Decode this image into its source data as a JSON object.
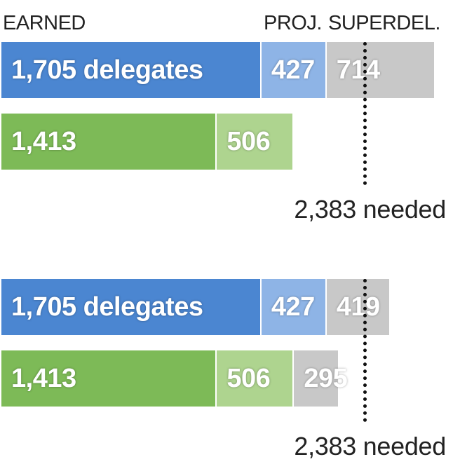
{
  "headers": {
    "earned": "EARNED",
    "projected": "PROJ.",
    "superdelegates": "SUPERDEL."
  },
  "colors": {
    "blue_earned": "#4b86d1",
    "blue_projected": "#8eb4e6",
    "green_earned": "#7dba57",
    "green_projected": "#aed48f",
    "superdelegate_gray": "#c8c8c8"
  },
  "chart_data": [
    {
      "type": "bar",
      "stacked": true,
      "orientation": "horizontal",
      "xlim": [
        0,
        2600
      ],
      "threshold": {
        "value": 2383,
        "label": "2,383 needed"
      },
      "rows": [
        {
          "color_earned": "#4b86d1",
          "color_projected": "#8eb4e6",
          "segments": [
            {
              "key": "earned",
              "value": 1705,
              "label": "1,705 delegates"
            },
            {
              "key": "projected",
              "value": 427,
              "label": "427"
            },
            {
              "key": "superdelegates",
              "value": 714,
              "label": "714"
            }
          ]
        },
        {
          "color_earned": "#7dba57",
          "color_projected": "#aed48f",
          "segments": [
            {
              "key": "earned",
              "value": 1413,
              "label": "1,413"
            },
            {
              "key": "projected",
              "value": 506,
              "label": "506"
            }
          ]
        }
      ]
    },
    {
      "type": "bar",
      "stacked": true,
      "orientation": "horizontal",
      "xlim": [
        0,
        2600
      ],
      "threshold": {
        "value": 2383,
        "label": "2,383 needed"
      },
      "rows": [
        {
          "color_earned": "#4b86d1",
          "color_projected": "#8eb4e6",
          "segments": [
            {
              "key": "earned",
              "value": 1705,
              "label": "1,705 delegates"
            },
            {
              "key": "projected",
              "value": 427,
              "label": "427"
            },
            {
              "key": "superdelegates",
              "value": 419,
              "label": "419"
            }
          ]
        },
        {
          "color_earned": "#7dba57",
          "color_projected": "#aed48f",
          "segments": [
            {
              "key": "earned",
              "value": 1413,
              "label": "1,413"
            },
            {
              "key": "projected",
              "value": 506,
              "label": "506"
            },
            {
              "key": "superdelegates",
              "value": 295,
              "label": "295"
            }
          ]
        }
      ]
    }
  ]
}
